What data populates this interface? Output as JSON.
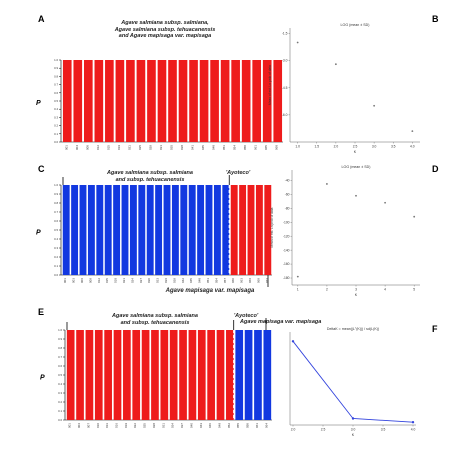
{
  "panel_labels": {
    "A": "A",
    "B": "B",
    "C": "C",
    "D": "D",
    "E": "E",
    "F": "F"
  },
  "titles": {
    "A": [
      "Agave salmiana subsp. salmiana,",
      "Agave salmiana subsp. tehuacanensis",
      "and Agave mapisaga var. mapisaga"
    ],
    "C": [
      "Agave salmiana subsp. salmiana",
      "and subsp. tehuacanensis"
    ],
    "C_ayoteco": "'Ayoteco'",
    "C_bottom": "Agave mapisaga var. mapisaga",
    "E": [
      "Agave salmiana subsp. salmiana",
      "and subsp. tehuacanensis"
    ],
    "E_ayoteco": "'Ayoteco'",
    "E_mapisaga": "Agave mapisaga var. mapisaga"
  },
  "colors": {
    "red": "#ee1c1c",
    "blue": "#1238e0",
    "line": "#3344dd"
  },
  "chart_data": [
    {
      "id": "A",
      "type": "bar",
      "stacked": true,
      "ylabel": "P",
      "ylim": [
        0,
        1
      ],
      "yticks": [
        "0.0",
        "0.1",
        "0.2",
        "0.3",
        "0.4",
        "0.5",
        "0.6",
        "0.7",
        "0.8",
        "0.9",
        "1.0"
      ],
      "categories": [
        "001",
        "004",
        "008",
        "012",
        "015",
        "019",
        "021",
        "025",
        "029",
        "031",
        "035",
        "038",
        "041",
        "045",
        "048",
        "051",
        "054",
        "058",
        "061",
        "065",
        "068"
      ],
      "series": [
        {
          "color": "red",
          "values": [
            1,
            1,
            1,
            1,
            1,
            1,
            1,
            1,
            1,
            1,
            1,
            1,
            1,
            1,
            1,
            1,
            1,
            1,
            1,
            1,
            1
          ]
        }
      ]
    },
    {
      "id": "B",
      "type": "scatter",
      "title": "LOG (mean ± SD)",
      "xlabel": "K",
      "ylabel": "Mean of est. Ln prob of data",
      "xlim": [
        0.8,
        4.2
      ],
      "ylim": [
        -7.5,
        -1.2
      ],
      "xticks": [
        "1.0",
        "1.5",
        "2.0",
        "2.5",
        "3.0",
        "3.5",
        "4.0"
      ],
      "yticks": [
        "-1.5",
        "-3.0",
        "-4.5",
        "-6.0"
      ],
      "x": [
        1,
        2,
        3,
        4
      ],
      "y": [
        -2.0,
        -3.2,
        -5.5,
        -6.9
      ]
    },
    {
      "id": "C",
      "type": "bar",
      "stacked": true,
      "ylabel": "P",
      "ylim": [
        0,
        1
      ],
      "yticks": [
        "0.0",
        "0.1",
        "0.2",
        "0.3",
        "0.4",
        "0.5",
        "0.6",
        "0.7",
        "0.8",
        "0.9",
        "1.0"
      ],
      "categories": [
        "001",
        "003",
        "006",
        "009",
        "012",
        "015",
        "018",
        "021",
        "024",
        "027",
        "030",
        "033",
        "036",
        "039",
        "042",
        "045",
        "048",
        "051",
        "054",
        "057",
        "060",
        "063",
        "066",
        "069",
        "072"
      ],
      "series": [
        {
          "color": "blue",
          "values": [
            1,
            1,
            1,
            1,
            1,
            1,
            1,
            1,
            1,
            1,
            1,
            1,
            1,
            1,
            1,
            1,
            1,
            1,
            1,
            1,
            0,
            0,
            0,
            0,
            0
          ]
        },
        {
          "color": "red",
          "values": [
            0,
            0,
            0,
            0,
            0,
            0,
            0,
            0,
            0,
            0,
            0,
            0,
            0,
            0,
            0,
            0,
            0,
            0,
            0,
            0,
            1,
            1,
            1,
            1,
            1
          ]
        }
      ]
    },
    {
      "id": "D",
      "type": "scatter",
      "title": "LOG (mean ± SD)",
      "xlabel": "K",
      "ylabel": "Mean of est. Ln prob of data",
      "xlim": [
        0.8,
        5.2
      ],
      "ylim": [
        -190,
        -25
      ],
      "xticks": [
        "1",
        "2",
        "3",
        "4",
        "5"
      ],
      "yticks": [
        "-40",
        "-60",
        "-80",
        "-100",
        "-120",
        "-140",
        "-160",
        "-180"
      ],
      "x": [
        1,
        2,
        3,
        4,
        5
      ],
      "y": [
        -178,
        -45,
        -62,
        -72,
        -92
      ]
    },
    {
      "id": "E",
      "type": "bar",
      "stacked": true,
      "ylabel": "P",
      "ylim": [
        0,
        1
      ],
      "yticks": [
        "0.0",
        "0.1",
        "0.2",
        "0.3",
        "0.4",
        "0.5",
        "0.6",
        "0.7",
        "0.8",
        "0.9",
        "1.0"
      ],
      "categories": [
        "001",
        "004",
        "007",
        "010",
        "013",
        "016",
        "019",
        "022",
        "025",
        "028",
        "031",
        "034",
        "037",
        "040",
        "043",
        "046",
        "049",
        "052",
        "055",
        "058",
        "061",
        "064"
      ],
      "series": [
        {
          "color": "red",
          "values": [
            1,
            1,
            1,
            1,
            1,
            1,
            1,
            1,
            1,
            1,
            1,
            1,
            1,
            1,
            1,
            1,
            1,
            1,
            0,
            0,
            0,
            0
          ]
        },
        {
          "color": "blue",
          "values": [
            0,
            0,
            0,
            0,
            0,
            0,
            0,
            0,
            0,
            0,
            0,
            0,
            0,
            0,
            0,
            0,
            0,
            0,
            1,
            1,
            1,
            1
          ]
        }
      ]
    },
    {
      "id": "F",
      "type": "line",
      "title": "DeltaK = mean(|L''(K)|) / sd(L(K))",
      "xlabel": "K",
      "xlim": [
        1.95,
        4.05
      ],
      "ylim": [
        0,
        1
      ],
      "xticks": [
        "2.0",
        "2.5",
        "3.0",
        "3.5",
        "4.0"
      ],
      "x": [
        2,
        3,
        4
      ],
      "y": [
        0.9,
        0.07,
        0.03
      ]
    }
  ]
}
